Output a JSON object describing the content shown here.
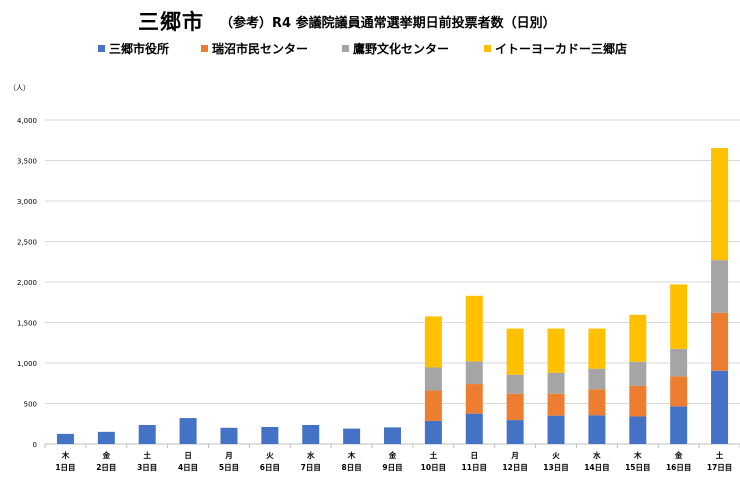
{
  "header": {
    "city": "三郷市",
    "subtitle": "（参考）R4 参議院議員通常選挙期日前投票者数（日別）"
  },
  "colors": {
    "s1": "#4472C4",
    "s2": "#ED7D31",
    "s3": "#A5A5A5",
    "s4": "#FFC000",
    "grid": "#D9D9D9",
    "axis": "#BFBFBF"
  },
  "chart_data": {
    "type": "bar",
    "stacked": true,
    "unit_label": "（人）",
    "ylim": [
      0,
      4000
    ],
    "yticks": [
      "0",
      "500",
      "1,000",
      "1,500",
      "2,000",
      "2,500",
      "3,000",
      "3,500",
      "4,000"
    ],
    "ytick_values": [
      0,
      500,
      1000,
      1500,
      2000,
      2500,
      3000,
      3500,
      4000
    ],
    "grid": true,
    "legend_position": "top",
    "categories": [
      {
        "weekday": "木",
        "day": "1日目"
      },
      {
        "weekday": "金",
        "day": "2日目"
      },
      {
        "weekday": "土",
        "day": "3日目"
      },
      {
        "weekday": "日",
        "day": "4日目"
      },
      {
        "weekday": "月",
        "day": "5日目"
      },
      {
        "weekday": "火",
        "day": "6日目"
      },
      {
        "weekday": "水",
        "day": "7日目"
      },
      {
        "weekday": "木",
        "day": "8日目"
      },
      {
        "weekday": "金",
        "day": "9日目"
      },
      {
        "weekday": "土",
        "day": "10日目"
      },
      {
        "weekday": "日",
        "day": "11日目"
      },
      {
        "weekday": "月",
        "day": "12日目"
      },
      {
        "weekday": "火",
        "day": "13日目"
      },
      {
        "weekday": "水",
        "day": "14日目"
      },
      {
        "weekday": "木",
        "day": "15日目"
      },
      {
        "weekday": "金",
        "day": "16日目"
      },
      {
        "weekday": "土",
        "day": "17日目"
      }
    ],
    "series": [
      {
        "name": "三郷市役所",
        "color_key": "s1",
        "values": [
          125,
          150,
          235,
          320,
          200,
          210,
          235,
          190,
          205,
          285,
          375,
          295,
          350,
          355,
          340,
          465,
          905
        ]
      },
      {
        "name": "瑞沼市民センター",
        "color_key": "s2",
        "values": [
          0,
          0,
          0,
          0,
          0,
          0,
          0,
          0,
          0,
          375,
          365,
          325,
          270,
          320,
          380,
          370,
          715
        ]
      },
      {
        "name": "鷹野文化センター",
        "color_key": "s3",
        "values": [
          0,
          0,
          0,
          0,
          0,
          0,
          0,
          0,
          0,
          285,
          280,
          235,
          260,
          255,
          295,
          340,
          650
        ]
      },
      {
        "name": "イトーヨーカドー三郷店",
        "color_key": "s4",
        "values": [
          0,
          0,
          0,
          0,
          0,
          0,
          0,
          0,
          0,
          630,
          810,
          570,
          545,
          495,
          580,
          795,
          1385
        ]
      }
    ]
  }
}
